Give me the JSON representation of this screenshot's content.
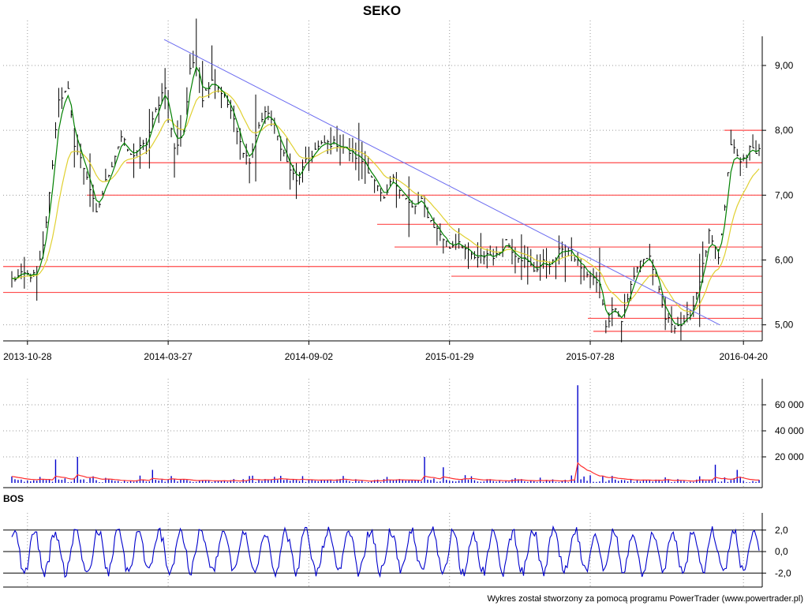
{
  "chart_data": [
    {
      "type": "candlestick",
      "panel": "price",
      "title": "SEKO",
      "x_tick_labels": [
        "2013-10-28",
        "2014-03-27",
        "2014-09-02",
        "2015-01-29",
        "2015-07-28",
        "2016-04-20"
      ],
      "y_tick_labels": [
        "5,00",
        "6,00",
        "7,00",
        "8,00",
        "9,00"
      ],
      "ylim": [
        4.85,
        9.45
      ],
      "grid": true,
      "colors": {
        "price_bars": "#000000",
        "ma_short": "#008000",
        "ma_long": "#e0d030",
        "support_lines": "#ff4a4a",
        "trend_line": "#6b6bf0"
      },
      "close_anchors": [
        [
          0,
          5.7
        ],
        [
          4,
          5.78
        ],
        [
          8,
          5.75
        ],
        [
          10,
          6.2
        ],
        [
          12,
          7.0
        ],
        [
          15,
          8.5
        ],
        [
          18,
          8.6
        ],
        [
          20,
          7.8
        ],
        [
          24,
          7.3
        ],
        [
          27,
          6.7
        ],
        [
          30,
          7.2
        ],
        [
          35,
          7.9
        ],
        [
          38,
          7.6
        ],
        [
          43,
          7.8
        ],
        [
          46,
          8.3
        ],
        [
          49,
          8.7
        ],
        [
          52,
          7.7
        ],
        [
          55,
          8.0
        ],
        [
          57,
          8.9
        ],
        [
          59,
          9.2
        ],
        [
          61,
          8.5
        ],
        [
          64,
          8.8
        ],
        [
          67,
          8.6
        ],
        [
          70,
          8.3
        ],
        [
          73,
          7.8
        ],
        [
          76,
          7.5
        ],
        [
          79,
          8.1
        ],
        [
          82,
          8.3
        ],
        [
          85,
          7.9
        ],
        [
          88,
          7.5
        ],
        [
          91,
          7.2
        ],
        [
          94,
          7.5
        ],
        [
          97,
          7.7
        ],
        [
          100,
          7.8
        ],
        [
          104,
          7.8
        ],
        [
          107,
          7.7
        ],
        [
          110,
          7.6
        ],
        [
          113,
          7.5
        ],
        [
          116,
          7.2
        ],
        [
          119,
          6.9
        ],
        [
          122,
          7.3
        ],
        [
          125,
          7.0
        ],
        [
          128,
          6.8
        ],
        [
          131,
          6.9
        ],
        [
          134,
          6.6
        ],
        [
          137,
          6.4
        ],
        [
          140,
          6.2
        ],
        [
          143,
          6.3
        ],
        [
          146,
          6.1
        ],
        [
          149,
          6.0
        ],
        [
          152,
          6.1
        ],
        [
          155,
          6.05
        ],
        [
          158,
          6.3
        ],
        [
          161,
          6.1
        ],
        [
          164,
          6.0
        ],
        [
          167,
          5.85
        ],
        [
          170,
          5.95
        ],
        [
          173,
          5.95
        ],
        [
          176,
          6.2
        ],
        [
          179,
          6.1
        ],
        [
          182,
          5.9
        ],
        [
          185,
          5.75
        ],
        [
          188,
          5.6
        ],
        [
          190,
          5.0
        ],
        [
          193,
          5.3
        ],
        [
          195,
          5.05
        ],
        [
          198,
          5.6
        ],
        [
          201,
          6.0
        ],
        [
          204,
          6.05
        ],
        [
          206,
          5.7
        ],
        [
          209,
          5.1
        ],
        [
          212,
          5.0
        ],
        [
          215,
          5.0
        ],
        [
          218,
          5.3
        ],
        [
          221,
          5.9
        ],
        [
          223,
          6.4
        ],
        [
          226,
          6.0
        ],
        [
          228,
          6.8
        ],
        [
          230,
          7.8
        ],
        [
          233,
          7.5
        ],
        [
          236,
          7.7
        ]
      ],
      "support_levels": [
        7.5,
        7.0,
        6.55,
        6.2,
        5.9,
        5.75,
        5.5,
        5.3,
        5.1,
        4.9
      ],
      "resistance_levels": [
        8.0
      ],
      "trend_line": {
        "from": [
          0,
          9.4
        ],
        "to": [
          0,
          5.0
        ]
      }
    },
    {
      "type": "bar",
      "panel": "volume",
      "y_tick_labels": [
        "20 000",
        "40 000",
        "60 000"
      ],
      "ylim": [
        0,
        80000
      ],
      "colors": {
        "bars": "#0000cc",
        "average": "#ff3030"
      },
      "spikes": [
        [
          14,
          18000
        ],
        [
          21,
          20000
        ],
        [
          45,
          10000
        ],
        [
          132,
          20000
        ],
        [
          138,
          12000
        ],
        [
          181,
          75000
        ],
        [
          225,
          14000
        ],
        [
          232,
          10000
        ]
      ]
    },
    {
      "type": "line",
      "panel": "oscillator",
      "label": "BOS",
      "y_tick_labels": [
        "-2,0",
        "0,0",
        "2,0"
      ],
      "ylim": [
        -3.3,
        3.6
      ],
      "reference_levels": [
        2.0,
        0.0,
        -2.0
      ],
      "colors": {
        "line": "#0000cc",
        "reference": "#000000"
      }
    }
  ],
  "footer": "Wykres został stworzony za pomocą programu PowerTrader (www.powertrader.pl)"
}
